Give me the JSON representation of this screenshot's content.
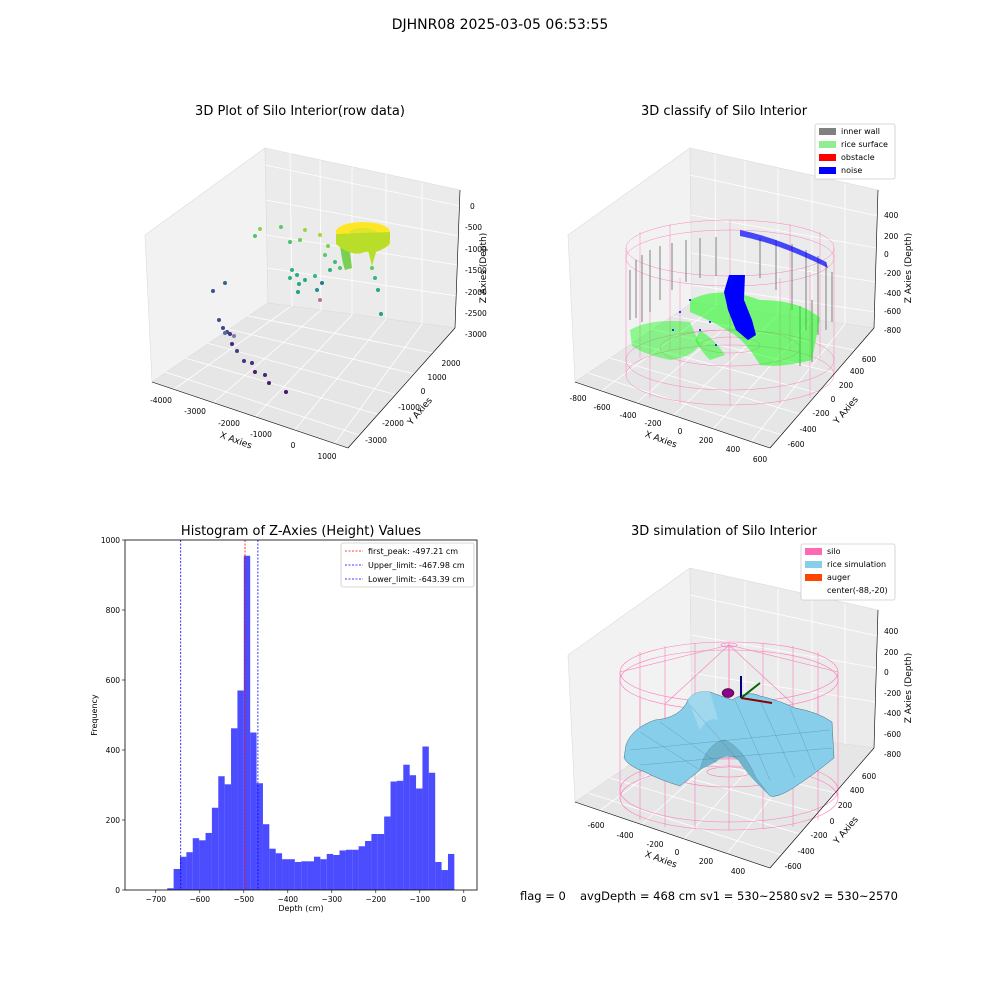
{
  "header": {
    "title": "DJHNR08 2025-03-05 06:53:55"
  },
  "panels": {
    "raw": {
      "title": "3D Plot of Silo Interior(row data)",
      "xlabel": "X Axies",
      "ylabel": "Y Axies",
      "zlabel": "Z Axies (Depth)",
      "xticks": [
        "-4000",
        "-3000",
        "-2000",
        "-1000",
        "0",
        "1000"
      ],
      "yticks": [
        "-3000",
        "-2000",
        "-1000",
        "0",
        "1000",
        "2000"
      ],
      "zticks": [
        "0",
        "-500",
        "-1000",
        "-1500",
        "-2000",
        "-2500",
        "-3000"
      ]
    },
    "classify": {
      "title": "3D classify of Silo Interior",
      "xlabel": "X Axies",
      "ylabel": "Y Axies",
      "zlabel": "Z Axies (Depth)",
      "xticks": [
        "-800",
        "-600",
        "-400",
        "-200",
        "0",
        "200",
        "400",
        "600"
      ],
      "yticks": [
        "-600",
        "-400",
        "-200",
        "0",
        "200",
        "400",
        "600"
      ],
      "zticks": [
        "400",
        "200",
        "0",
        "-200",
        "-400",
        "-600",
        "-800"
      ],
      "legend": [
        {
          "label": "inner wall",
          "color": "#808080"
        },
        {
          "label": "rice surface",
          "color": "#90ee90"
        },
        {
          "label": "obstacle",
          "color": "#ff0000"
        },
        {
          "label": "noise",
          "color": "#0000ff"
        }
      ]
    },
    "simulation": {
      "title": "3D simulation of Silo Interior",
      "xlabel": "X Axies",
      "ylabel": "Y Axies",
      "zlabel": "Z Axies (Depth)",
      "xticks": [
        "-600",
        "-400",
        "-200",
        "0",
        "200",
        "400"
      ],
      "yticks": [
        "-600",
        "-400",
        "-200",
        "0",
        "200",
        "400",
        "600"
      ],
      "zticks": [
        "400",
        "200",
        "0",
        "-200",
        "-400",
        "-600",
        "-800"
      ],
      "legend": [
        {
          "label": "silo",
          "color": "#ff69b4"
        },
        {
          "label": "rice simulation",
          "color": "#87ceeb"
        },
        {
          "label": "auger",
          "color": "#ff4500"
        },
        {
          "label": "center(-88,-20)",
          "color": ""
        }
      ]
    }
  },
  "status": {
    "flag": "flag = 0",
    "avg_depth": "avgDepth = 468 cm",
    "sv1": "sv1 = 530~2580",
    "sv2": "sv2 = 530~2570"
  },
  "chart_data": {
    "type": "bar",
    "title": "Histogram of Z-Axies (Height) Values",
    "xlabel": "Depth (cm)",
    "ylabel": "Frequency",
    "xlim": [
      -770,
      30
    ],
    "ylim": [
      0,
      1000
    ],
    "xticks": [
      -700,
      -600,
      -500,
      -400,
      -300,
      -200,
      -100,
      0
    ],
    "yticks": [
      0,
      200,
      400,
      600,
      800,
      1000
    ],
    "bin_width": 14.5,
    "bin_start": -674,
    "values": [
      5,
      60,
      95,
      108,
      148,
      142,
      163,
      235,
      325,
      302,
      462,
      570,
      955,
      450,
      305,
      188,
      118,
      105,
      88,
      88,
      80,
      82,
      82,
      95,
      88,
      103,
      100,
      113,
      115,
      115,
      125,
      140,
      160,
      160,
      210,
      310,
      312,
      358,
      328,
      290,
      410,
      335,
      80,
      57,
      103
    ],
    "color": "#0000ff",
    "lines": [
      {
        "label": "first_peak: -497.21 cm",
        "value": -497.21,
        "color": "#ff0000"
      },
      {
        "label": "Upper_limit: -467.98 cm",
        "value": -467.98,
        "color": "#0000ff"
      },
      {
        "label": "Lower_limit: -643.39 cm",
        "value": -643.39,
        "color": "#0000ff"
      }
    ]
  }
}
